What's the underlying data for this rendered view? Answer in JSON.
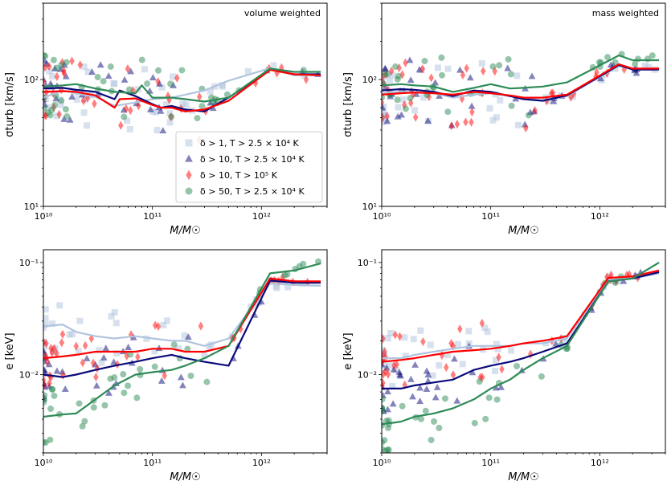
{
  "colors": {
    "s1": "#b0c4de",
    "s2": "#0a0a7a",
    "s3": "#ff0000",
    "s4": "#2e8b57"
  },
  "legend": [
    {
      "marker": "square",
      "color": "#b0c4de",
      "text": "δ > 1, T > 2.5 × 10⁴ K"
    },
    {
      "marker": "triangle",
      "color": "#0a0a7a",
      "text": "δ > 10, T > 2.5 × 10⁴ K"
    },
    {
      "marker": "diamond",
      "color": "#ff0000",
      "text": "δ > 10, T > 10⁵ K"
    },
    {
      "marker": "circle",
      "color": "#2e8b57",
      "text": "δ > 50, T > 2.5 × 10⁴ K"
    }
  ],
  "chart_data": [
    {
      "type": "line",
      "annotation": "volume weighted",
      "xlabel": "M/M☉",
      "ylabel": "σturb [km/s]",
      "xscale": "log",
      "yscale": "log",
      "xlim": [
        10000000000.0,
        4000000000000.0
      ],
      "ylim": [
        10,
        400
      ],
      "xticks": [
        {
          "v": 10000000000.0,
          "label": "10¹⁰"
        },
        {
          "v": 100000000000.0,
          "label": "10¹¹"
        },
        {
          "v": 1000000000000.0,
          "label": "10¹²"
        }
      ],
      "yticks": [
        {
          "v": 10,
          "label": "10¹"
        },
        {
          "v": 100,
          "label": "10²"
        }
      ],
      "legend": "lower-left",
      "series": [
        {
          "id": "s1",
          "x": [
            10000000000.0,
            15000000000.0,
            20000000000.0,
            30000000000.0,
            45000000000.0,
            70000000000.0,
            100000000000.0,
            150000000000.0,
            200000000000.0,
            300000000000.0,
            500000000000.0,
            1200000000000.0,
            2000000000000.0,
            3500000000000.0
          ],
          "y": [
            72,
            82,
            78,
            73,
            62,
            66,
            70,
            72,
            76,
            82,
            98,
            123,
            108,
            108
          ]
        },
        {
          "id": "s2",
          "x": [
            10000000000.0,
            15000000000.0,
            20000000000.0,
            30000000000.0,
            45000000000.0,
            50000000000.0,
            70000000000.0,
            100000000000.0,
            120000000000.0,
            150000000000.0,
            200000000000.0,
            300000000000.0,
            500000000000.0,
            1200000000000.0,
            2000000000000.0,
            3500000000000.0
          ],
          "y": [
            85,
            86,
            83,
            80,
            70,
            82,
            74,
            64,
            60,
            62,
            58,
            56,
            72,
            120,
            110,
            110
          ]
        },
        {
          "id": "s3",
          "x": [
            10000000000.0,
            15000000000.0,
            20000000000.0,
            30000000000.0,
            45000000000.0,
            50000000000.0,
            70000000000.0,
            100000000000.0,
            120000000000.0,
            150000000000.0,
            200000000000.0,
            300000000000.0,
            500000000000.0,
            1200000000000.0,
            2000000000000.0,
            3500000000000.0
          ],
          "y": [
            80,
            81,
            80,
            75,
            60,
            70,
            71,
            63,
            60,
            60,
            56,
            58,
            68,
            119,
            110,
            108
          ]
        },
        {
          "id": "s4",
          "x": [
            10000000000.0,
            15000000000.0,
            20000000000.0,
            30000000000.0,
            45000000000.0,
            70000000000.0,
            80000000000.0,
            100000000000.0,
            150000000000.0,
            200000000000.0,
            300000000000.0,
            500000000000.0,
            1200000000000.0,
            2000000000000.0,
            3500000000000.0
          ],
          "y": [
            88,
            90,
            92,
            85,
            80,
            78,
            90,
            72,
            72,
            70,
            67,
            72,
            122,
            115,
            115
          ]
        }
      ]
    },
    {
      "type": "line",
      "annotation": "mass weighted",
      "xlabel": "M/M☉",
      "ylabel": "σturb [km/s]",
      "xscale": "log",
      "yscale": "log",
      "xlim": [
        10000000000.0,
        4000000000000.0
      ],
      "ylim": [
        10,
        400
      ],
      "xticks": [
        {
          "v": 10000000000.0,
          "label": "10¹⁰"
        },
        {
          "v": 100000000000.0,
          "label": "10¹¹"
        },
        {
          "v": 1000000000000.0,
          "label": "10¹²"
        }
      ],
      "yticks": [
        {
          "v": 10,
          "label": "10¹"
        },
        {
          "v": 100,
          "label": "10²"
        }
      ],
      "series": [
        {
          "id": "s1",
          "x": [
            10000000000.0,
            15000000000.0,
            20000000000.0,
            30000000000.0,
            45000000000.0,
            70000000000.0,
            100000000000.0,
            150000000000.0,
            200000000000.0,
            300000000000.0,
            500000000000.0,
            1500000000000.0,
            2000000000000.0,
            3500000000000.0
          ],
          "y": [
            78,
            80,
            79,
            78,
            72,
            76,
            78,
            74,
            72,
            68,
            74,
            128,
            122,
            122
          ]
        },
        {
          "id": "s2",
          "x": [
            10000000000.0,
            15000000000.0,
            20000000000.0,
            30000000000.0,
            45000000000.0,
            70000000000.0,
            100000000000.0,
            150000000000.0,
            200000000000.0,
            300000000000.0,
            500000000000.0,
            1500000000000.0,
            2000000000000.0,
            3500000000000.0
          ],
          "y": [
            82,
            84,
            83,
            80,
            74,
            82,
            80,
            74,
            70,
            68,
            75,
            130,
            120,
            120
          ]
        },
        {
          "id": "s3",
          "x": [
            10000000000.0,
            15000000000.0,
            20000000000.0,
            30000000000.0,
            45000000000.0,
            70000000000.0,
            100000000000.0,
            150000000000.0,
            200000000000.0,
            300000000000.0,
            500000000000.0,
            1500000000000.0,
            2000000000000.0,
            3500000000000.0
          ],
          "y": [
            76,
            78,
            79,
            78,
            76,
            80,
            78,
            75,
            72,
            72,
            76,
            132,
            122,
            122
          ]
        },
        {
          "id": "s4",
          "x": [
            10000000000.0,
            15000000000.0,
            20000000000.0,
            30000000000.0,
            45000000000.0,
            70000000000.0,
            100000000000.0,
            150000000000.0,
            200000000000.0,
            300000000000.0,
            500000000000.0,
            1500000000000.0,
            2000000000000.0,
            3500000000000.0
          ],
          "y": [
            90,
            92,
            90,
            88,
            80,
            86,
            92,
            85,
            86,
            88,
            95,
            155,
            142,
            142
          ]
        }
      ]
    },
    {
      "type": "line",
      "xlabel": "M/M☉",
      "ylabel": "e [keV]",
      "xscale": "log",
      "yscale": "log",
      "xlim": [
        10000000000.0,
        4000000000000.0
      ],
      "ylim": [
        0.002,
        0.13
      ],
      "xticks": [
        {
          "v": 10000000000.0,
          "label": "10¹⁰"
        },
        {
          "v": 100000000000.0,
          "label": "10¹¹"
        },
        {
          "v": 1000000000000.0,
          "label": "10¹²"
        }
      ],
      "yticks": [
        {
          "v": 0.01,
          "label": "10⁻²"
        },
        {
          "v": 0.1,
          "label": "10⁻¹"
        }
      ],
      "series": [
        {
          "id": "s1",
          "x": [
            10000000000.0,
            15000000000.0,
            20000000000.0,
            30000000000.0,
            45000000000.0,
            70000000000.0,
            100000000000.0,
            150000000000.0,
            200000000000.0,
            300000000000.0,
            500000000000.0,
            1200000000000.0,
            2000000000000.0,
            3500000000000.0
          ],
          "y": [
            0.027,
            0.028,
            0.024,
            0.022,
            0.021,
            0.022,
            0.021,
            0.02,
            0.02,
            0.018,
            0.021,
            0.065,
            0.063,
            0.062
          ]
        },
        {
          "id": "s2",
          "x": [
            10000000000.0,
            15000000000.0,
            20000000000.0,
            30000000000.0,
            45000000000.0,
            70000000000.0,
            100000000000.0,
            150000000000.0,
            200000000000.0,
            300000000000.0,
            500000000000.0,
            1200000000000.0,
            2000000000000.0,
            3500000000000.0
          ],
          "y": [
            0.01,
            0.0095,
            0.01,
            0.011,
            0.012,
            0.013,
            0.014,
            0.015,
            0.014,
            0.013,
            0.012,
            0.069,
            0.066,
            0.066
          ]
        },
        {
          "id": "s3",
          "x": [
            10000000000.0,
            15000000000.0,
            20000000000.0,
            30000000000.0,
            45000000000.0,
            70000000000.0,
            100000000000.0,
            150000000000.0,
            200000000000.0,
            300000000000.0,
            500000000000.0,
            1200000000000.0,
            2000000000000.0,
            3500000000000.0
          ],
          "y": [
            0.014,
            0.0145,
            0.015,
            0.016,
            0.016,
            0.016,
            0.017,
            0.017,
            0.016,
            0.016,
            0.018,
            0.072,
            0.068,
            0.068
          ]
        },
        {
          "id": "s4",
          "x": [
            10000000000.0,
            15000000000.0,
            20000000000.0,
            30000000000.0,
            45000000000.0,
            70000000000.0,
            100000000000.0,
            150000000000.0,
            200000000000.0,
            300000000000.0,
            500000000000.0,
            1200000000000.0,
            2000000000000.0,
            3500000000000.0
          ],
          "y": [
            0.0042,
            0.0044,
            0.0045,
            0.006,
            0.008,
            0.01,
            0.0105,
            0.011,
            0.012,
            0.014,
            0.018,
            0.08,
            0.085,
            0.098
          ]
        }
      ]
    },
    {
      "type": "line",
      "xlabel": "M/M☉",
      "ylabel": "e [keV]",
      "xscale": "log",
      "yscale": "log",
      "xlim": [
        10000000000.0,
        4000000000000.0
      ],
      "ylim": [
        0.002,
        0.13
      ],
      "xticks": [
        {
          "v": 10000000000.0,
          "label": "10¹⁰"
        },
        {
          "v": 100000000000.0,
          "label": "10¹¹"
        },
        {
          "v": 1000000000000.0,
          "label": "10¹²"
        }
      ],
      "yticks": [
        {
          "v": 0.01,
          "label": "10⁻²"
        },
        {
          "v": 0.1,
          "label": "10⁻¹"
        }
      ],
      "series": [
        {
          "id": "s1",
          "x": [
            10000000000.0,
            15000000000.0,
            20000000000.0,
            30000000000.0,
            45000000000.0,
            70000000000.0,
            100000000000.0,
            150000000000.0,
            200000000000.0,
            300000000000.0,
            500000000000.0,
            1200000000000.0,
            2000000000000.0,
            3500000000000.0
          ],
          "y": [
            0.014,
            0.014,
            0.015,
            0.016,
            0.017,
            0.018,
            0.018,
            0.018,
            0.019,
            0.019,
            0.021,
            0.07,
            0.072,
            0.08
          ]
        },
        {
          "id": "s2",
          "x": [
            10000000000.0,
            15000000000.0,
            20000000000.0,
            30000000000.0,
            45000000000.0,
            70000000000.0,
            100000000000.0,
            150000000000.0,
            200000000000.0,
            300000000000.0,
            500000000000.0,
            1200000000000.0,
            2000000000000.0,
            3500000000000.0
          ],
          "y": [
            0.0075,
            0.0075,
            0.008,
            0.0085,
            0.009,
            0.011,
            0.012,
            0.013,
            0.014,
            0.016,
            0.019,
            0.068,
            0.072,
            0.082
          ]
        },
        {
          "id": "s3",
          "x": [
            10000000000.0,
            15000000000.0,
            20000000000.0,
            30000000000.0,
            45000000000.0,
            70000000000.0,
            100000000000.0,
            150000000000.0,
            200000000000.0,
            300000000000.0,
            500000000000.0,
            1200000000000.0,
            2000000000000.0,
            3500000000000.0
          ],
          "y": [
            0.013,
            0.0135,
            0.014,
            0.015,
            0.016,
            0.0165,
            0.017,
            0.018,
            0.019,
            0.02,
            0.022,
            0.073,
            0.075,
            0.085
          ]
        },
        {
          "id": "s4",
          "x": [
            10000000000.0,
            15000000000.0,
            20000000000.0,
            30000000000.0,
            45000000000.0,
            70000000000.0,
            100000000000.0,
            150000000000.0,
            200000000000.0,
            300000000000.0,
            500000000000.0,
            1200000000000.0,
            2000000000000.0,
            3500000000000.0
          ],
          "y": [
            0.0036,
            0.0038,
            0.0042,
            0.0045,
            0.005,
            0.006,
            0.0075,
            0.009,
            0.011,
            0.014,
            0.018,
            0.068,
            0.072,
            0.1
          ]
        }
      ]
    }
  ]
}
